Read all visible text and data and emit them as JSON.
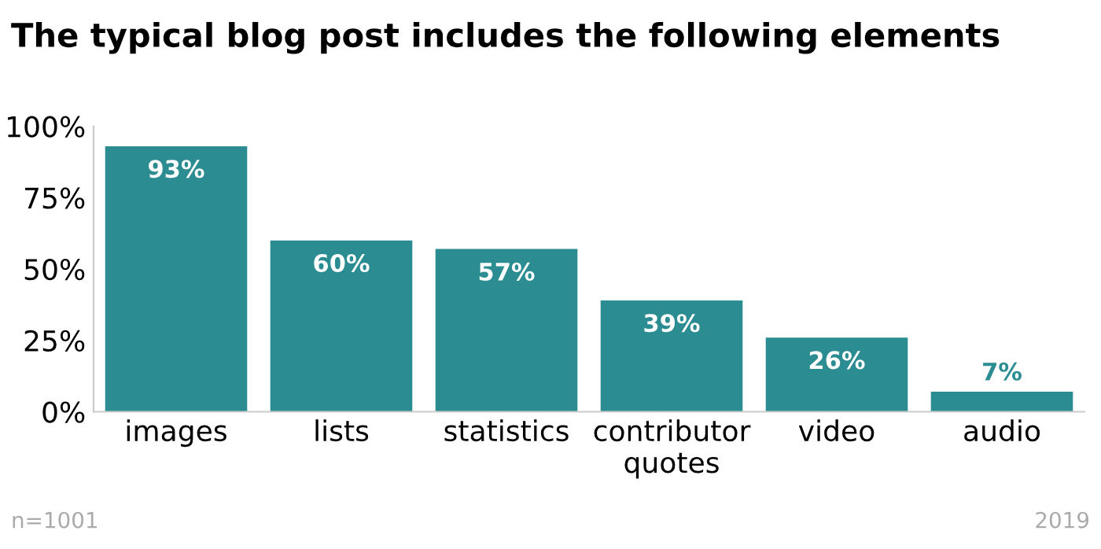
{
  "chart_data": {
    "type": "bar",
    "title": "The typical blog post includes the following elements",
    "categories": [
      "images",
      "lists",
      "statistics",
      "contributor\nquotes",
      "video",
      "audio"
    ],
    "values": [
      93,
      60,
      57,
      39,
      26,
      7
    ],
    "value_labels": [
      "93%",
      "60%",
      "57%",
      "39%",
      "26%",
      "7%"
    ],
    "color": "#2b8c91",
    "ylim": [
      0,
      100
    ],
    "yticks": [
      {
        "value": 0,
        "label": "0%"
      },
      {
        "value": 25,
        "label": "25%"
      },
      {
        "value": 50,
        "label": "50%"
      },
      {
        "value": 75,
        "label": "75%"
      },
      {
        "value": 100,
        "label": "100%"
      }
    ],
    "grid": false,
    "annotations": [
      "n=1001",
      "2019"
    ]
  }
}
